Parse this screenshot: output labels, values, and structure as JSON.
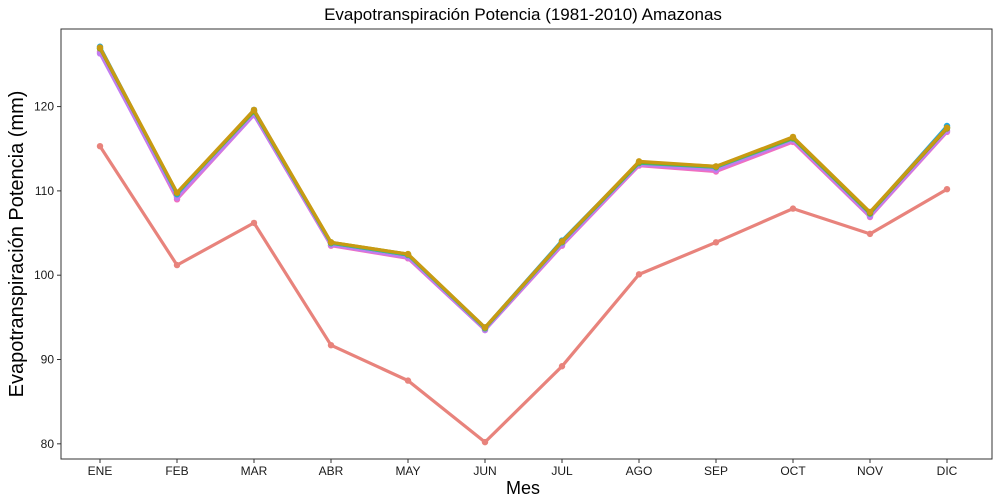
{
  "chart_data": {
    "type": "line",
    "title": "Evapotranspiración Potencia (1981-2010)  Amazonas",
    "xlabel": "Mes",
    "ylabel": "Evapotranspiración Potencia  (mm)",
    "categories": [
      "ENE",
      "FEB",
      "MAR",
      "ABR",
      "MAY",
      "JUN",
      "JUL",
      "AGO",
      "SEP",
      "OCT",
      "NOV",
      "DIC"
    ],
    "yticks": [
      80,
      90,
      100,
      110,
      120
    ],
    "ylim": [
      78.2,
      129.2
    ],
    "grid": false,
    "legend": "none",
    "series": [
      {
        "color": "#E8837C",
        "values": [
          115.3,
          101.2,
          106.2,
          91.7,
          87.5,
          80.2,
          89.2,
          100.1,
          103.9,
          107.9,
          104.9,
          110.2
        ]
      },
      {
        "color": "#F06FC0",
        "values": [
          126.5,
          109.0,
          119.0,
          103.5,
          102.0,
          93.5,
          103.5,
          113.0,
          112.3,
          115.8,
          106.9,
          117.0
        ]
      },
      {
        "color": "#C17CF0",
        "values": [
          126.3,
          109.2,
          119.0,
          103.6,
          102.1,
          93.5,
          103.6,
          113.1,
          112.5,
          116.0,
          107.0,
          117.1
        ]
      },
      {
        "color": "#19A7E8",
        "values": [
          127.1,
          109.6,
          119.6,
          103.8,
          102.4,
          93.8,
          104.1,
          113.4,
          112.8,
          116.3,
          107.4,
          117.7
        ]
      },
      {
        "color": "#3BB98A",
        "values": [
          126.9,
          109.7,
          119.4,
          103.8,
          102.4,
          93.7,
          103.9,
          113.3,
          112.8,
          116.2,
          107.3,
          117.5
        ]
      },
      {
        "color": "#8AA51A",
        "values": [
          126.9,
          109.8,
          119.5,
          103.9,
          102.5,
          93.8,
          104.0,
          113.4,
          112.9,
          116.3,
          107.4,
          117.4
        ]
      },
      {
        "color": "#C99A12",
        "values": [
          127.0,
          109.8,
          119.6,
          103.9,
          102.5,
          93.8,
          104.0,
          113.5,
          112.9,
          116.4,
          107.5,
          117.5
        ]
      }
    ]
  }
}
